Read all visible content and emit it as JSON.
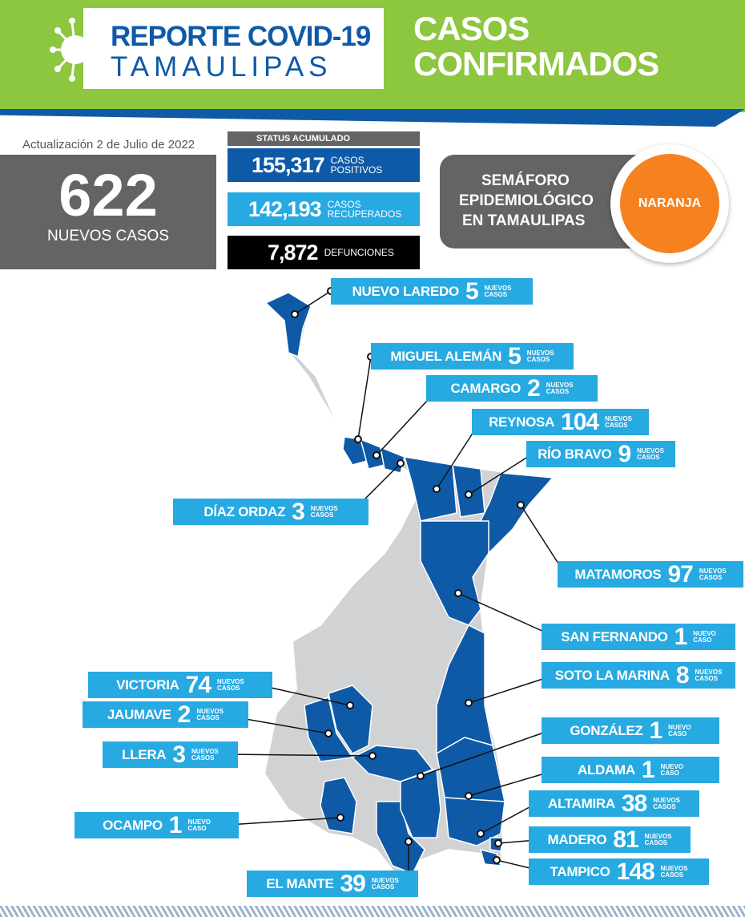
{
  "header": {
    "logo_line1": "REPORTE COVID-19",
    "logo_line2": "TAMAULIPAS",
    "title_line1": "CASOS",
    "title_line2": "CONFIRMADOS"
  },
  "update": "Actualización  2 de Julio de 2022",
  "new_cases": {
    "value": "622",
    "label": "NUEVOS CASOS"
  },
  "status": {
    "title": "STATUS ACUMULADO",
    "positivos": {
      "value": "155,317",
      "l1": "CASOS",
      "l2": "POSITIVOS"
    },
    "recuperados": {
      "value": "142,193",
      "l1": "CASOS",
      "l2": "RECUPERADOS"
    },
    "defunciones": {
      "value": "7,872",
      "l1": "DEFUNCIONES"
    }
  },
  "semaforo": {
    "l1": "SEMÁFORO",
    "l2": "EPIDEMIOLÓGICO",
    "l3": "EN TAMAULIPAS",
    "level": "NARANJA",
    "color": "#f5821f"
  },
  "colors": {
    "green": "#8dc63f",
    "blue": "#0e5aa7",
    "light_blue": "#27a9e1",
    "grey": "#636466"
  },
  "municipios": [
    {
      "name": "NUEVO LAREDO",
      "count": "5",
      "suffix1": "NUEVOS",
      "suffix2": "CASOS"
    },
    {
      "name": "MIGUEL ALEMÁN",
      "count": "5",
      "suffix1": "NUEVOS",
      "suffix2": "CASOS"
    },
    {
      "name": "CAMARGO",
      "count": "2",
      "suffix1": "NUEVOS",
      "suffix2": "CASOS"
    },
    {
      "name": "REYNOSA",
      "count": "104",
      "suffix1": "NUEVOS",
      "suffix2": "CASOS"
    },
    {
      "name": "RÍO BRAVO",
      "count": "9",
      "suffix1": "NUEVOS",
      "suffix2": "CASOS"
    },
    {
      "name": "DÍAZ ORDAZ",
      "count": "3",
      "suffix1": "NUEVOS",
      "suffix2": "CASOS"
    },
    {
      "name": "MATAMOROS",
      "count": "97",
      "suffix1": "NUEVOS",
      "suffix2": "CASOS"
    },
    {
      "name": "SAN FERNANDO",
      "count": "1",
      "suffix1": "NUEVO",
      "suffix2": "CASO"
    },
    {
      "name": "SOTO LA MARINA",
      "count": "8",
      "suffix1": "NUEVOS",
      "suffix2": "CASOS"
    },
    {
      "name": "GONZÁLEZ",
      "count": "1",
      "suffix1": "NUEVO",
      "suffix2": "CASO"
    },
    {
      "name": "ALDAMA",
      "count": "1",
      "suffix1": "NUEVO",
      "suffix2": "CASO"
    },
    {
      "name": "ALTAMIRA",
      "count": "38",
      "suffix1": "NUEVOS",
      "suffix2": "CASOS"
    },
    {
      "name": "MADERO",
      "count": "81",
      "suffix1": "NUEVOS",
      "suffix2": "CASOS"
    },
    {
      "name": "TAMPICO",
      "count": "148",
      "suffix1": "NUEVOS",
      "suffix2": "CASOS"
    },
    {
      "name": "EL MANTE",
      "count": "39",
      "suffix1": "NUEVOS",
      "suffix2": "CASOS"
    },
    {
      "name": "VICTORIA",
      "count": "74",
      "suffix1": "NUEVOS",
      "suffix2": "CASOS"
    },
    {
      "name": "JAUMAVE",
      "count": "2",
      "suffix1": "NUEVOS",
      "suffix2": "CASOS"
    },
    {
      "name": "LLERA",
      "count": "3",
      "suffix1": "NUEVOS",
      "suffix2": "CASOS"
    },
    {
      "name": "OCAMPO",
      "count": "1",
      "suffix1": "NUEVO",
      "suffix2": "CASO"
    }
  ]
}
